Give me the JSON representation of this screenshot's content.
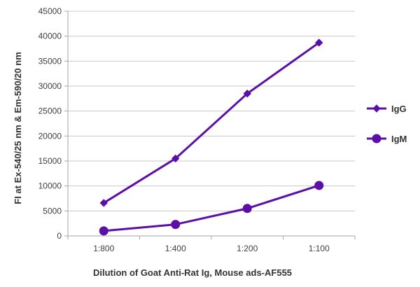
{
  "chart_data": {
    "type": "line",
    "title": "",
    "xlabel": "Dilution of Goat Anti-Rat Ig, Mouse ads-AF555",
    "ylabel": "FI at Ex-540/25 nm & Em-590/20 nm",
    "categories": [
      "1:800",
      "1:400",
      "1:200",
      "1:100"
    ],
    "ylim": [
      0,
      45000
    ],
    "yticks": [
      0,
      5000,
      10000,
      15000,
      20000,
      25000,
      30000,
      35000,
      40000,
      45000
    ],
    "grid": "horizontal",
    "legend_position": "right",
    "series": [
      {
        "name": "IgG",
        "marker": "diamond",
        "color": "#5b0fa8",
        "values": [
          6600,
          15500,
          28500,
          38700
        ]
      },
      {
        "name": "IgM",
        "marker": "circle",
        "color": "#5b0fa8",
        "values": [
          1000,
          2300,
          5500,
          10100
        ]
      }
    ]
  }
}
